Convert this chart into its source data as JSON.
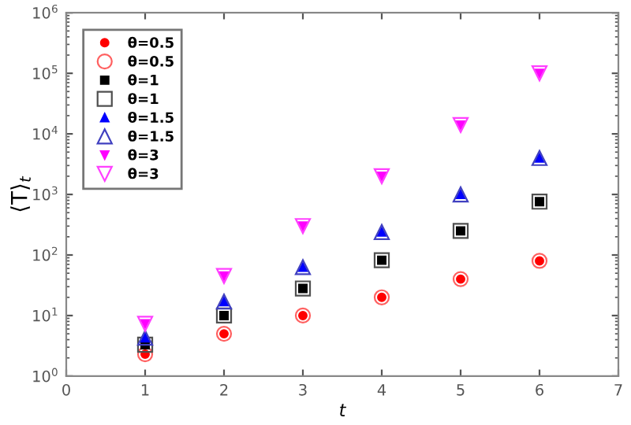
{
  "chart_data": {
    "type": "scatter",
    "xlabel": "t",
    "ylabel": "⟨T⟩$_{t}$",
    "log": "y",
    "xlim": [
      0,
      7
    ],
    "xticks": [
      0,
      1,
      2,
      3,
      4,
      5,
      6,
      7
    ],
    "ylim": [
      1,
      1000000
    ],
    "yticks": [
      {
        "value": 1,
        "label": "10$^{0}$"
      },
      {
        "value": 10,
        "label": "10$^{1}$"
      },
      {
        "value": 100,
        "label": "10$^{2}$"
      },
      {
        "value": 1000,
        "label": "10$^{3}$"
      },
      {
        "value": 10000,
        "label": "10$^{4}$"
      },
      {
        "value": 100000,
        "label": "10$^{5}$"
      },
      {
        "value": 1000000,
        "label": "10$^{6}$"
      }
    ],
    "x": [
      1,
      2,
      3,
      4,
      5,
      6
    ],
    "grid": false,
    "legend": "top left",
    "series": [
      {
        "name": "θ=0.5",
        "color": "#ff0000",
        "marker": "circle",
        "values": [
          2.3,
          5,
          10,
          20,
          40,
          80
        ]
      },
      {
        "name": "θ=0.5",
        "color": "#ff6060",
        "marker": "circle",
        "values": [
          2.3,
          5,
          10,
          20,
          40,
          80
        ]
      },
      {
        "name": "θ=1",
        "color": "#000000",
        "marker": "square",
        "values": [
          3.3,
          10,
          28,
          82,
          250,
          760
        ]
      },
      {
        "name": "θ=1",
        "color": "#505050",
        "marker": "square",
        "values": [
          3.3,
          10,
          28,
          82,
          250,
          760
        ]
      },
      {
        "name": "θ=1.5",
        "color": "#0000ff",
        "marker": "triangle",
        "values": [
          4.3,
          17,
          63,
          240,
          1000,
          4000
        ]
      },
      {
        "name": "θ=1.5",
        "color": "#4040c0",
        "marker": "triangle",
        "values": [
          4.3,
          17,
          63,
          240,
          1000,
          4000
        ]
      },
      {
        "name": "θ=3",
        "color": "#ff00ff",
        "marker": "triangle_down",
        "values": [
          7.3,
          45,
          300,
          2000,
          14000,
          100000
        ]
      },
      {
        "name": "θ=3",
        "color": "#ff40ff",
        "marker": "triangle_down",
        "values": [
          7.3,
          45,
          300,
          2000,
          14000,
          100000
        ]
      }
    ]
  }
}
